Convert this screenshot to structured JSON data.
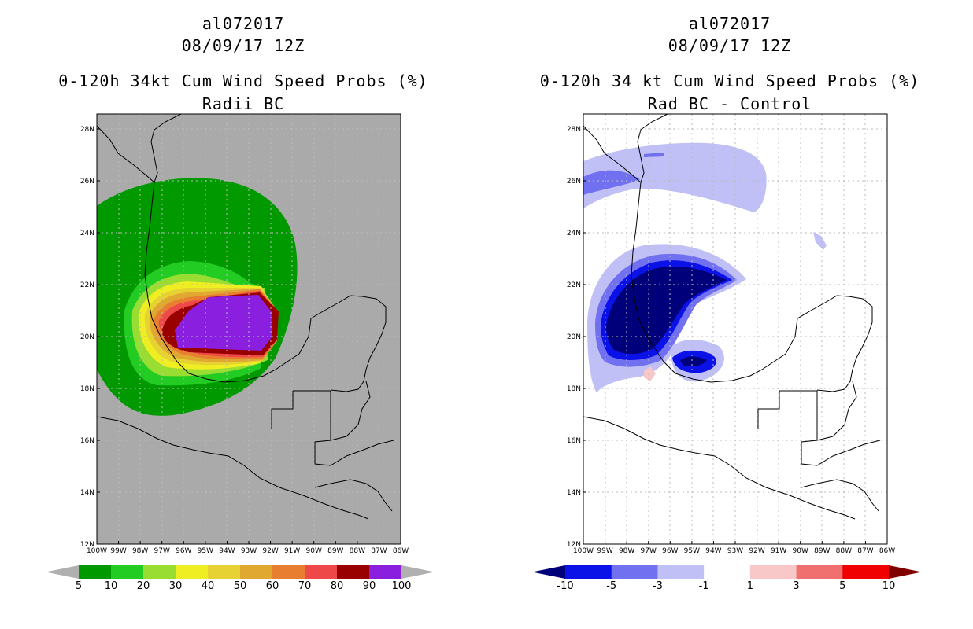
{
  "left": {
    "title1": "al072017",
    "title2": "08/09/17 12Z",
    "title3": "0-120h 34kt Cum Wind Speed Probs (%)",
    "title4": "Radii BC",
    "colorbar": {
      "colors": [
        "#b0b0b0",
        "#009900",
        "#22cc22",
        "#99dd33",
        "#eeee22",
        "#e6d233",
        "#e0a830",
        "#e87e30",
        "#ee4848",
        "#990000",
        "#8a1fe0",
        "#b0b0b0"
      ],
      "labels": [
        "5",
        "10",
        "20",
        "30",
        "40",
        "50",
        "60",
        "70",
        "80",
        "90",
        "100"
      ]
    }
  },
  "right": {
    "title1": "al072017",
    "title2": "08/09/17 12Z",
    "title3": "0-120h 34 kt Cum Wind Speed Probs (%)",
    "title4": "Rad BC - Control",
    "colorbar": {
      "colors": [
        "#00007a",
        "#0a12e8",
        "#7070f0",
        "#c0c0f6",
        "#ffffff",
        "#f8c8c8",
        "#f07070",
        "#f00000",
        "#800000"
      ],
      "labels": [
        "-10",
        "-5",
        "-3",
        "-1",
        "1",
        "3",
        "5",
        "10"
      ]
    }
  },
  "map": {
    "lat_labels": [
      "28N",
      "26N",
      "24N",
      "22N",
      "20N",
      "18N",
      "16N",
      "14N",
      "12N"
    ],
    "lon_labels": [
      "100W",
      "99W",
      "98W",
      "97W",
      "96W",
      "95W",
      "94W",
      "93W",
      "92W",
      "91W",
      "90W",
      "89W",
      "88W",
      "87W",
      "86W"
    ]
  },
  "colors": {
    "background_gray": "#aaaaaa",
    "grid": "#bbbbbb",
    "coast": "#000000"
  }
}
